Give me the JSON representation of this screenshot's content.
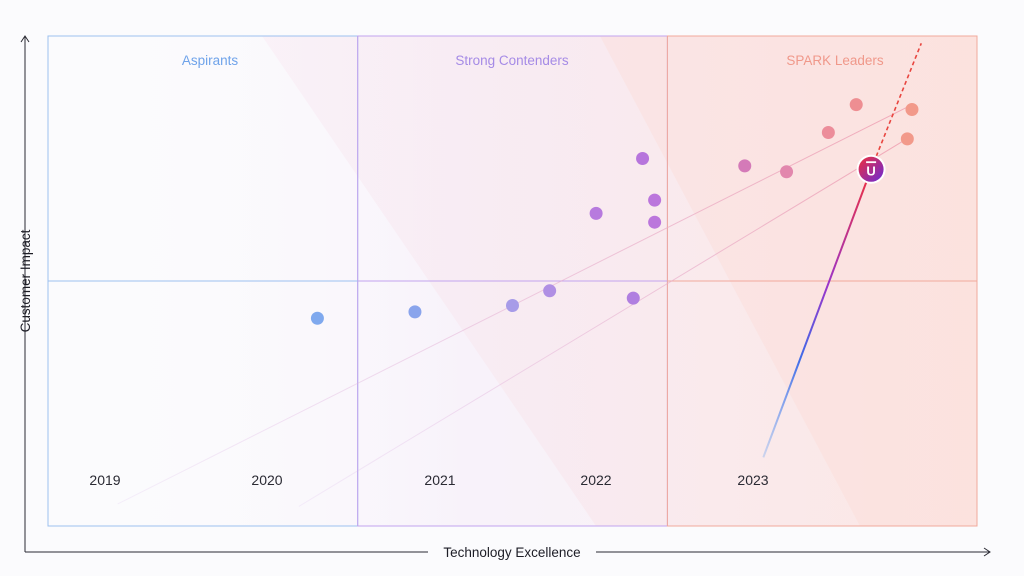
{
  "chart_data": {
    "type": "scatter",
    "title": "",
    "xlabel": "Technology Excellence",
    "ylabel": "Customer Impact",
    "xlim": [
      0,
      100
    ],
    "ylim": [
      0,
      100
    ],
    "grid": false,
    "quadrants": [
      {
        "name": "Aspirants",
        "color": "#6fa3ea"
      },
      {
        "name": "Strong Contenders",
        "color": "#a58be6"
      },
      {
        "name": "SPARK Leaders",
        "color": "#f0988a"
      }
    ],
    "years": [
      "2019",
      "2020",
      "2021",
      "2022",
      "2023"
    ],
    "points": [
      {
        "x": 29.0,
        "y": 42.4,
        "color": "#7fa9ee"
      },
      {
        "x": 39.5,
        "y": 43.7,
        "color": "#8aa4ec"
      },
      {
        "x": 50.0,
        "y": 45.0,
        "color": "#a79be8"
      },
      {
        "x": 54.0,
        "y": 48.0,
        "color": "#b08fe4"
      },
      {
        "x": 63.0,
        "y": 46.5,
        "color": "#b07fe0"
      },
      {
        "x": 59.0,
        "y": 63.8,
        "color": "#b77ade"
      },
      {
        "x": 64.0,
        "y": 75.0,
        "color": "#b775dc"
      },
      {
        "x": 65.3,
        "y": 66.5,
        "color": "#bb76dc"
      },
      {
        "x": 65.3,
        "y": 62.0,
        "color": "#bb76dc"
      },
      {
        "x": 75.0,
        "y": 73.5,
        "color": "#d47ab8"
      },
      {
        "x": 79.5,
        "y": 72.3,
        "color": "#e287ad"
      },
      {
        "x": 84.0,
        "y": 80.3,
        "color": "#ec8d9a"
      },
      {
        "x": 87.0,
        "y": 86.0,
        "color": "#ee8e92"
      },
      {
        "x": 92.5,
        "y": 79.0,
        "color": "#f2998a"
      },
      {
        "x": 93.0,
        "y": 85.0,
        "color": "#f2998a"
      }
    ],
    "highlight": {
      "label": "U",
      "x": 88.6,
      "y": 72.8
    },
    "trend_lines": [
      {
        "from": [
          7.5,
          4.5
        ],
        "to": [
          92.5,
          85.5
        ]
      },
      {
        "from": [
          27.0,
          4.0
        ],
        "to": [
          92.0,
          78.5
        ]
      },
      {
        "from": [
          77.0,
          14.0
        ],
        "to": [
          88.6,
          72.8
        ]
      },
      {
        "from": [
          88.6,
          72.8
        ],
        "to": [
          94.0,
          98.5
        ]
      }
    ]
  }
}
